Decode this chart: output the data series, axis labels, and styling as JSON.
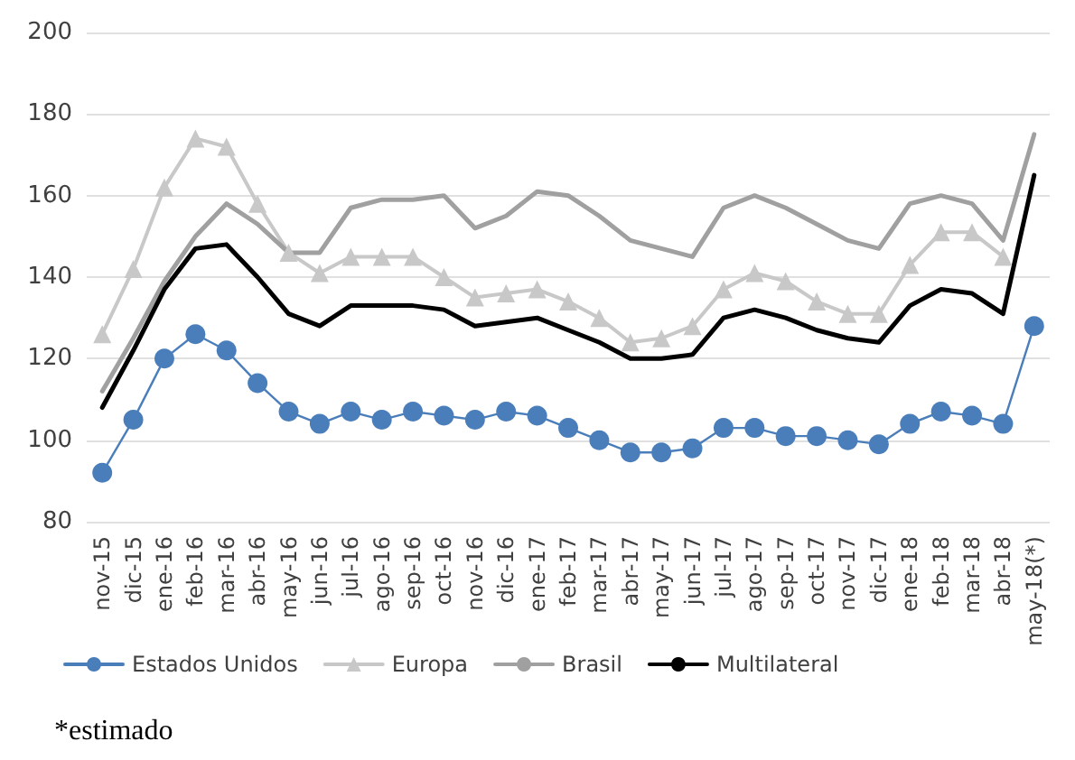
{
  "chart_data": {
    "type": "line",
    "categories": [
      "nov-15",
      "dic-15",
      "ene-16",
      "feb-16",
      "mar-16",
      "abr-16",
      "may-16",
      "jun-16",
      "jul-16",
      "ago-16",
      "sep-16",
      "oct-16",
      "nov-16",
      "dic-16",
      "ene-17",
      "feb-17",
      "mar-17",
      "abr-17",
      "may-17",
      "jun-17",
      "jul-17",
      "ago-17",
      "sep-17",
      "oct-17",
      "nov-17",
      "dic-17",
      "ene-18",
      "feb-18",
      "mar-18",
      "abr-18",
      "may-18(*)"
    ],
    "series": [
      {
        "name": "Estados Unidos",
        "color": "#4a7ebb",
        "marker": "circle",
        "values": [
          92,
          105,
          120,
          126,
          122,
          114,
          107,
          104,
          107,
          105,
          107,
          106,
          105,
          107,
          106,
          103,
          100,
          97,
          97,
          98,
          103,
          103,
          101,
          101,
          100,
          99,
          104,
          107,
          106,
          104,
          128
        ]
      },
      {
        "name": "Europa",
        "color": "#c8c8c8",
        "marker": "triangle",
        "values": [
          126,
          142,
          162,
          174,
          172,
          158,
          146,
          141,
          145,
          145,
          145,
          140,
          135,
          136,
          137,
          134,
          130,
          124,
          125,
          128,
          137,
          141,
          139,
          134,
          131,
          131,
          143,
          151,
          151,
          145,
          null
        ]
      },
      {
        "name": "Brasil",
        "color": "#a0a0a0",
        "marker": "none",
        "values": [
          112,
          125,
          139,
          150,
          158,
          153,
          146,
          146,
          157,
          159,
          159,
          160,
          152,
          155,
          161,
          160,
          155,
          149,
          147,
          145,
          157,
          160,
          157,
          153,
          149,
          147,
          158,
          160,
          158,
          149,
          175
        ]
      },
      {
        "name": "Multilateral",
        "color": "#000000",
        "marker": "none",
        "values": [
          108,
          122,
          137,
          147,
          148,
          140,
          131,
          128,
          133,
          133,
          133,
          132,
          128,
          129,
          130,
          127,
          124,
          120,
          120,
          121,
          130,
          132,
          130,
          127,
          125,
          124,
          133,
          137,
          136,
          131,
          165
        ]
      }
    ],
    "ylim": [
      80,
      200
    ],
    "yticks": [
      80,
      100,
      120,
      140,
      160,
      180,
      200
    ],
    "grid": "y",
    "legend": "bottom",
    "annotations": [
      "*estimado"
    ]
  }
}
